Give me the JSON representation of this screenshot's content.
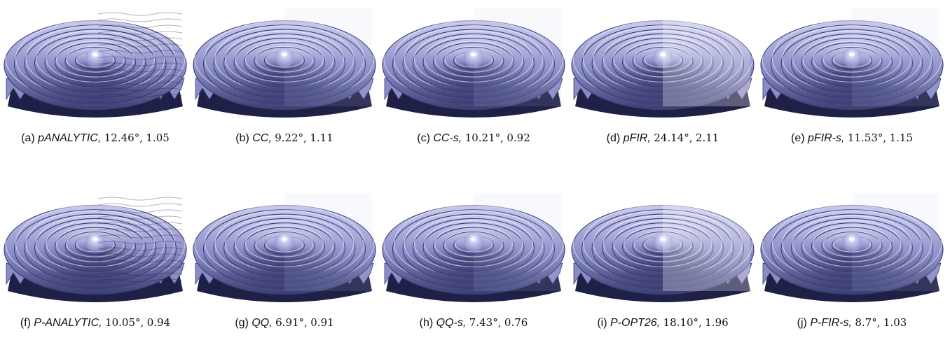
{
  "figure": {
    "panels": [
      {
        "label": "(a)",
        "method": "pANALYTIC,",
        "angle": "12.46°,",
        "value": "1.05",
        "artifact": "strong"
      },
      {
        "label": "(b)",
        "method": "CC,",
        "angle": "9.22°,",
        "value": "1.11",
        "artifact": "mild"
      },
      {
        "label": "(c)",
        "method": "CC-s,",
        "angle": "10.21°,",
        "value": "0.92",
        "artifact": "mild"
      },
      {
        "label": "(d)",
        "method": "pFIR,",
        "angle": "24.14°,",
        "value": "2.11",
        "artifact": "blur"
      },
      {
        "label": "(e)",
        "method": "pFIR-s,",
        "angle": "11.53°,",
        "value": "1.15",
        "artifact": "mild"
      },
      {
        "label": "(f)",
        "method": "P-ANALYTIC,",
        "angle": "10.05°,",
        "value": "0.94",
        "artifact": "strong"
      },
      {
        "label": "(g)",
        "method": "QQ,",
        "angle": "6.91°,",
        "value": "0.91",
        "artifact": "mild"
      },
      {
        "label": "(h)",
        "method": "QQ-s,",
        "angle": "7.43°,",
        "value": "0.76",
        "artifact": "mild"
      },
      {
        "label": "(i)",
        "method": "P-OPT26,",
        "angle": "18.10°,",
        "value": "1.96",
        "artifact": "blur"
      },
      {
        "label": "(j)",
        "method": "P-FIR-s,",
        "angle": "8.7°,",
        "value": "1.03",
        "artifact": "mild"
      }
    ]
  },
  "colors": {
    "surface_light": "#c9cbf0",
    "surface_mid": "#8a8cc6",
    "surface_dark": "#3b3d73",
    "surface_deep": "#1f2046"
  }
}
